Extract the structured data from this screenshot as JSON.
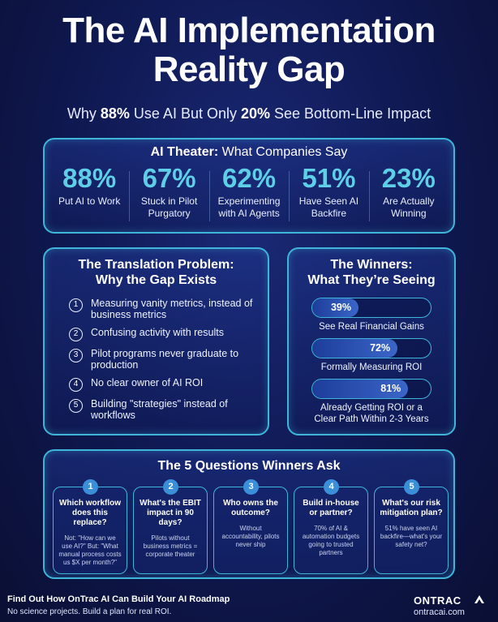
{
  "title_line1": "The AI Implementation",
  "title_line2": "Reality Gap",
  "subtitle": {
    "pre": "Why ",
    "pct1": "88%",
    "mid": " Use AI But Only ",
    "pct2": "20%",
    "post": " See Bottom-Line Impact"
  },
  "theater": {
    "title_bold": "AI Theater:",
    "title_rest": " What Companies Say",
    "stats": [
      {
        "value": "88%",
        "label": "Put AI to Work"
      },
      {
        "value": "67%",
        "label": "Stuck in Pilot Purgatory"
      },
      {
        "value": "62%",
        "label": "Experimenting with AI Agents"
      },
      {
        "value": "51%",
        "label": "Have Seen AI Backfire"
      },
      {
        "value": "23%",
        "label": "Are Actually Winning"
      }
    ]
  },
  "translation": {
    "title1": "The Translation Problem:",
    "title2": "Why the Gap Exists",
    "items": [
      {
        "num": "1",
        "text": "Measuring vanity metrics, instead of business metrics"
      },
      {
        "num": "2",
        "text": "Confusing activity with results"
      },
      {
        "num": "3",
        "text": "Pilot programs never graduate to production"
      },
      {
        "num": "4",
        "text": "No clear owner of AI ROI"
      },
      {
        "num": "5",
        "text": "Building \"strategies\" instead of workflows"
      }
    ]
  },
  "winners": {
    "title1": "The Winners:",
    "title2": "What They’re Seeing",
    "items": [
      {
        "value": "39%",
        "fill_percent": 39,
        "label": "See Real Financial Gains"
      },
      {
        "value": "72%",
        "fill_percent": 72,
        "label": "Formally Measuring ROI"
      },
      {
        "value": "81%",
        "fill_percent": 81,
        "label": "Already Getting ROI or a Clear Path Within 2-3 Years"
      }
    ]
  },
  "questions": {
    "title": "The 5 Questions Winners Ask",
    "items": [
      {
        "num": "1",
        "question": "Which workflow does this replace?",
        "body": "Not: \"How can we use AI?\" But: \"What manual process costs us $X per month?\""
      },
      {
        "num": "2",
        "question": "What's the EBIT impact in 90 days?",
        "body": "Pilots without business metrics = corporate theater"
      },
      {
        "num": "3",
        "question": "Who owns the outcome?",
        "body": "Without accountability, pilots never ship"
      },
      {
        "num": "4",
        "question": "Build in-house or partner?",
        "body": "70% of AI & automation budgets going to trusted partners"
      },
      {
        "num": "5",
        "question": "What's our risk mitigation plan?",
        "body": "51% have seen AI backfire—what's your safety net?"
      }
    ]
  },
  "footer": {
    "cta": "Find Out How OnTrac AI Can Build Your AI Roadmap",
    "sub": "No science projects. Build a plan for real ROI.",
    "brand": "ONTRAC",
    "url": "ontracai.com"
  },
  "colors": {
    "accent": "#5fcfe8",
    "border": "#3fb6d9",
    "background": "#101a55"
  }
}
